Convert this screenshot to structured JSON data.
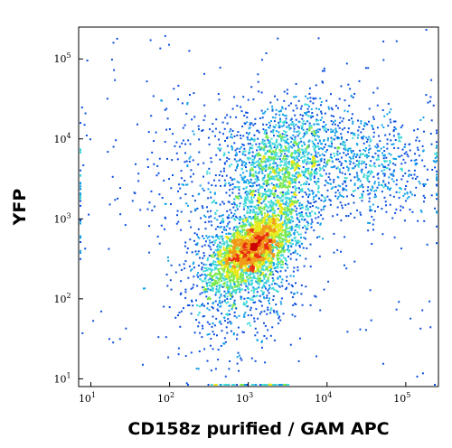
{
  "chart_data": {
    "type": "scatter",
    "style": "flow-cytometry-density-dot-plot",
    "xlabel": "CD158z purified / GAM APC",
    "ylabel": "YFP",
    "x_scale": "log",
    "y_scale": "log",
    "xlim": [
      7,
      260000
    ],
    "ylim": [
      8,
      250000
    ],
    "x_ticks": [
      {
        "value": 10,
        "base": "10",
        "exp": "1"
      },
      {
        "value": 100,
        "base": "10",
        "exp": "2"
      },
      {
        "value": 1000,
        "base": "10",
        "exp": "3"
      },
      {
        "value": 10000,
        "base": "10",
        "exp": "4"
      },
      {
        "value": 100000,
        "base": "10",
        "exp": "5"
      }
    ],
    "y_ticks": [
      {
        "value": 10,
        "base": "10",
        "exp": "1"
      },
      {
        "value": 100,
        "base": "10",
        "exp": "2"
      },
      {
        "value": 1000,
        "base": "10",
        "exp": "3"
      },
      {
        "value": 10000,
        "base": "10",
        "exp": "4"
      },
      {
        "value": 100000,
        "base": "10",
        "exp": "5"
      }
    ],
    "grid": false,
    "legend": "none",
    "density_colors": [
      "#0000cc",
      "#0a4fe0",
      "#12a0e8",
      "#3fd8d8",
      "#7be84a",
      "#e8e81a",
      "#f09a18",
      "#e83010",
      "#cc0000"
    ],
    "populations": [
      {
        "x": 1100,
        "y": 450,
        "density": "high"
      },
      {
        "x": 2500,
        "y": 4500,
        "density": "medium"
      },
      {
        "x": 30000,
        "y": 5000,
        "density": "low"
      }
    ]
  }
}
